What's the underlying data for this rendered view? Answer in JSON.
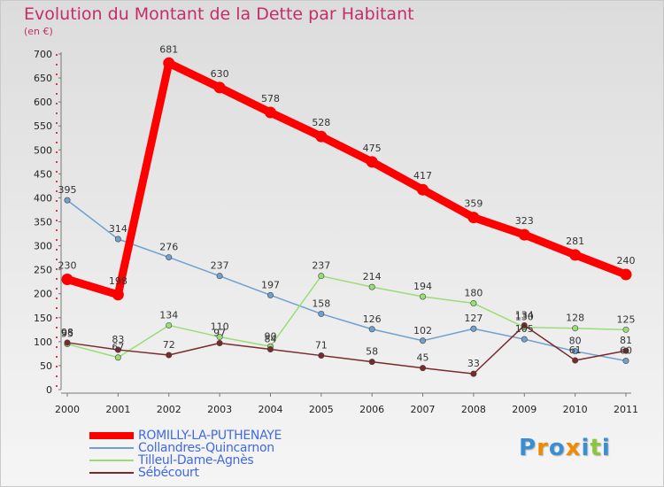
{
  "header": {
    "title": "Evolution du Montant de la Dette par Habitant",
    "subtitle": "(en €)"
  },
  "logo": {
    "text": "Proxiti"
  },
  "chart_data": {
    "type": "line",
    "title": "Evolution du Montant de la Dette par Habitant",
    "ylabel": "(en €)",
    "xlabel": "",
    "x": [
      "2000",
      "2001",
      "2002",
      "2003",
      "2004",
      "2005",
      "2006",
      "2007",
      "2008",
      "2009",
      "2010",
      "2011"
    ],
    "ylim": [
      0,
      700
    ],
    "yticks": [
      0,
      50,
      100,
      150,
      200,
      250,
      300,
      350,
      400,
      450,
      500,
      550,
      600,
      650,
      700
    ],
    "grid": false,
    "legend_position": "bottom-left",
    "series": [
      {
        "name": "ROMILLY-LA-PUTHENAYE",
        "color": "#ff0000",
        "emphasis": true,
        "values": [
          230,
          198,
          681,
          630,
          578,
          528,
          475,
          417,
          359,
          323,
          281,
          240
        ]
      },
      {
        "name": "Collandres-Quincarnon",
        "color": "#6fa0cf",
        "values": [
          395,
          314,
          276,
          237,
          197,
          158,
          126,
          102,
          127,
          105,
          80,
          60
        ]
      },
      {
        "name": "Tilleul-Dame-Agnès",
        "color": "#99dd77",
        "values": [
          95,
          67,
          134,
          110,
          90,
          237,
          214,
          194,
          180,
          130,
          128,
          125
        ]
      },
      {
        "name": "Sébécourt",
        "color": "#7a2a2a",
        "values": [
          98,
          83,
          72,
          97,
          84,
          71,
          58,
          45,
          33,
          134,
          61,
          81
        ]
      }
    ]
  }
}
